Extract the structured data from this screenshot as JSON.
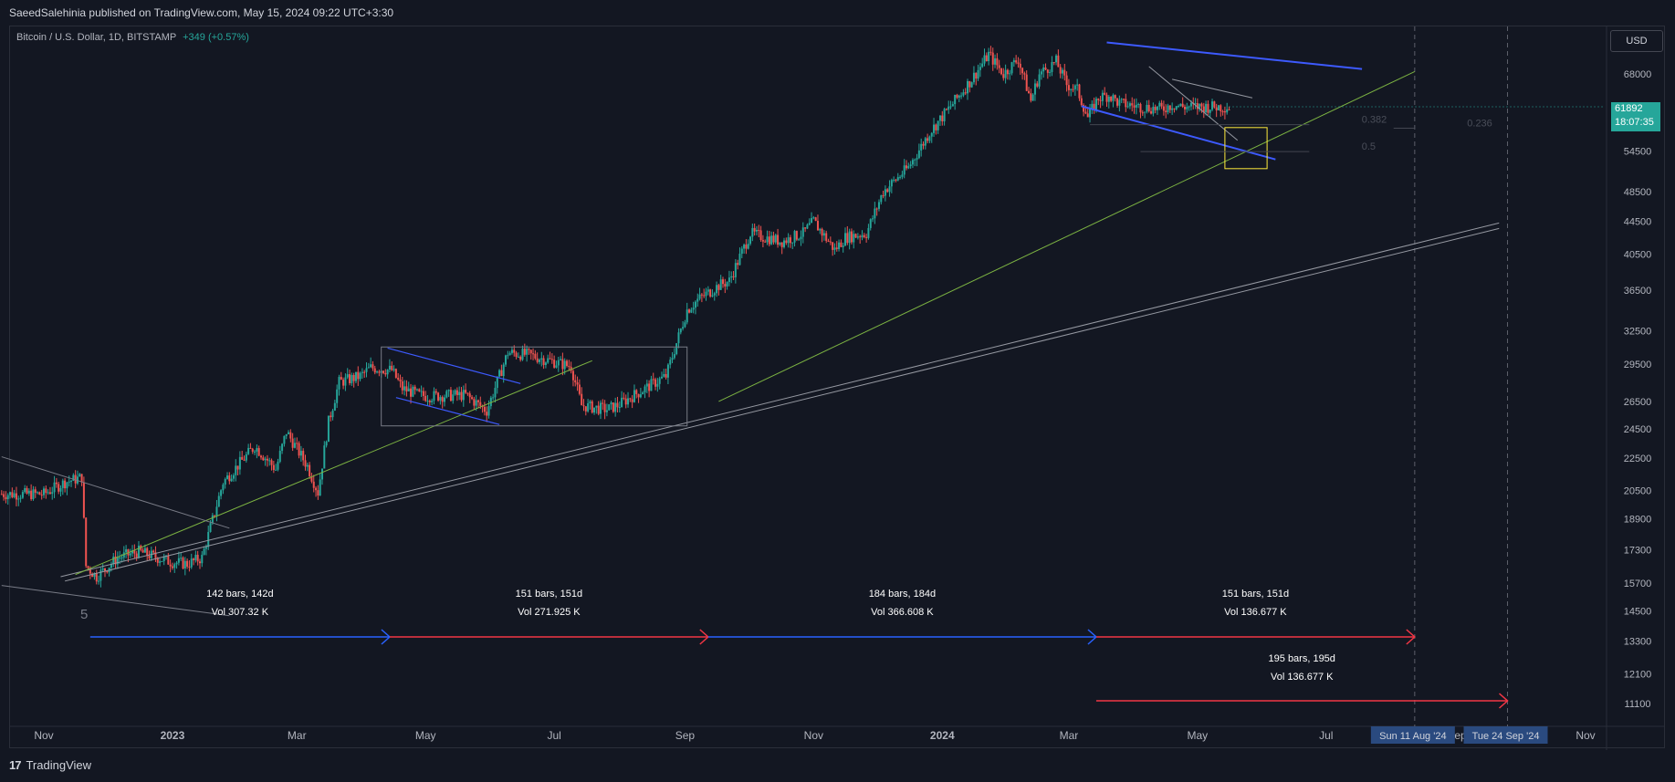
{
  "header": {
    "published": "SaeedSalehinia published on TradingView.com, May 15, 2024 09:22 UTC+3:30"
  },
  "symbol": {
    "name": "Bitcoin / U.S. Dollar, 1D, BITSTAMP",
    "change": "+349 (+0.57%)"
  },
  "price_axis": {
    "currency_button": "USD",
    "last_price": "61892",
    "countdown": "18:07:35"
  },
  "footer": {
    "brand": "TradingView",
    "logo": "17"
  },
  "colors": {
    "background": "#131722",
    "up": "#26a69a",
    "down": "#ef5350",
    "blue_arrow": "#2962ff",
    "red_arrow": "#f23645",
    "trendline_blue": "#3d5afe",
    "trendline_green": "#7cb342",
    "box_yellow": "#ffeb3b"
  },
  "chart_data": {
    "type": "candlestick",
    "title": "Bitcoin / U.S. Dollar, 1D, BITSTAMP",
    "yscale": "log",
    "ylim": [
      10400,
      78000
    ],
    "y_ticks": [
      68000,
      54500,
      48500,
      44500,
      40500,
      36500,
      32500,
      29500,
      26500,
      24500,
      22500,
      20500,
      18900,
      17300,
      15700,
      14500,
      13300,
      12100,
      11100
    ],
    "x_ticks": [
      "Nov",
      "2023",
      "Mar",
      "May",
      "Jul",
      "Sep",
      "Nov",
      "2024",
      "Mar",
      "May",
      "Jul",
      "Sep",
      "Nov"
    ],
    "x_tick_days": [
      0,
      61,
      120,
      181,
      242,
      304,
      365,
      426,
      486,
      547,
      608,
      670,
      731
    ],
    "start_date": "2022-11-01",
    "end_day": 731,
    "price_path_days": [
      0,
      10,
      18,
      20,
      25,
      35,
      45,
      60,
      68,
      75,
      85,
      100,
      110,
      115,
      125,
      130,
      135,
      140,
      150,
      155,
      165,
      170,
      178,
      182,
      200,
      210,
      220,
      230,
      240,
      250,
      255,
      262,
      267,
      272,
      280,
      290,
      295,
      305,
      310,
      320,
      325,
      335,
      342,
      350,
      360,
      365,
      375,
      380,
      390,
      398,
      410,
      420,
      430,
      440,
      448,
      455,
      462,
      468,
      472,
      480,
      485,
      490,
      495,
      500,
      505,
      510,
      520,
      530,
      535,
      540,
      545,
      548,
      552,
      562
    ],
    "price_path_values": [
      20300,
      21000,
      21300,
      16500,
      16000,
      16900,
      17200,
      16700,
      16600,
      16900,
      21000,
      23300,
      21800,
      24300,
      22000,
      20400,
      25000,
      28000,
      28500,
      29200,
      29000,
      27500,
      27000,
      26900,
      27000,
      25800,
      30500,
      30300,
      29800,
      29300,
      26200,
      26000,
      25900,
      26200,
      27000,
      28000,
      28500,
      34500,
      35500,
      37000,
      37500,
      43000,
      42500,
      42000,
      43000,
      44500,
      41000,
      42500,
      43000,
      48500,
      52000,
      57500,
      62000,
      67000,
      72000,
      68000,
      71000,
      63000,
      68000,
      70500,
      66000,
      65000,
      60000,
      63500,
      64000,
      62500,
      61900,
      61500,
      62300,
      61892,
      61892,
      61892,
      61892,
      61892
    ],
    "annotations": [
      {
        "type": "date_range",
        "label": "142 bars, 142d",
        "volume": "Vol 307.32 K",
        "start_day": 22,
        "end_day": 164,
        "color": "blue"
      },
      {
        "type": "date_range",
        "label": "151 bars, 151d",
        "volume": "Vol 271.925 K",
        "start_day": 164,
        "end_day": 315,
        "color": "red"
      },
      {
        "type": "date_range",
        "label": "184 bars, 184d",
        "volume": "Vol 366.608 K",
        "start_day": 315,
        "end_day": 499,
        "color": "blue"
      },
      {
        "type": "date_range",
        "label": "151 bars, 151d",
        "volume": "Vol 136.677 K",
        "start_day": 499,
        "end_day": 650,
        "color": "red"
      },
      {
        "type": "date_range",
        "label": "195 bars, 195d",
        "volume": "Vol 136.677 K",
        "start_day": 499,
        "end_day": 694,
        "color": "red"
      }
    ],
    "fib_labels": [
      "0.382",
      "0.236",
      "0.5"
    ],
    "wave_label": "5",
    "future_date_labels": [
      "Sun 11 Aug '24",
      "Tue 24 Sep '24"
    ],
    "future_date_days": [
      650,
      694
    ],
    "current_price": 61892
  }
}
